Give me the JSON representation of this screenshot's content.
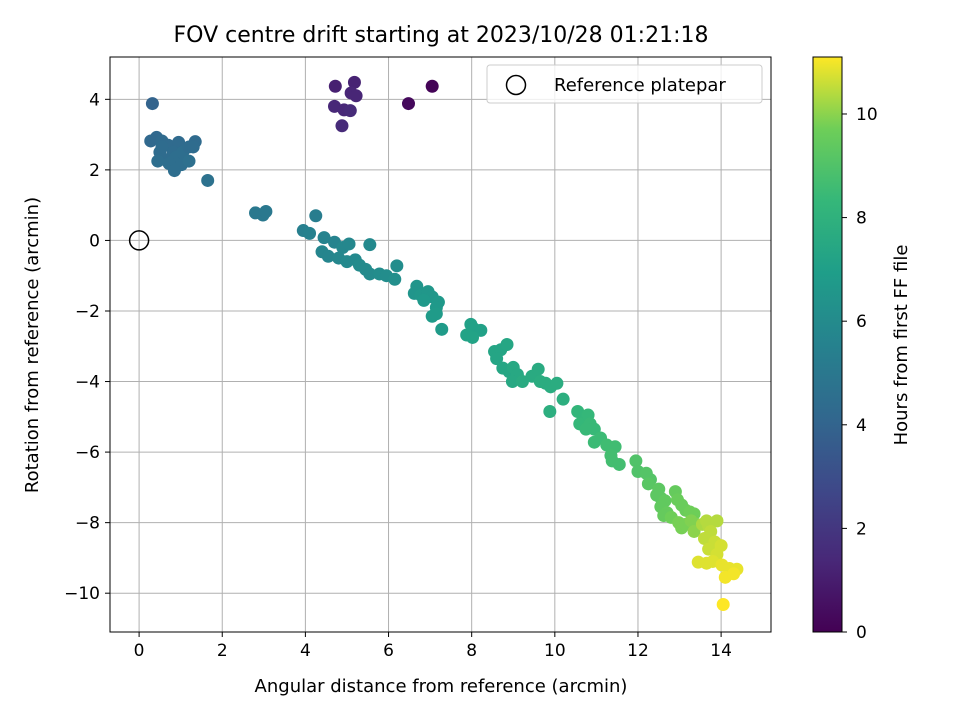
{
  "chart_data": {
    "type": "scatter",
    "title": "FOV centre drift starting at 2023/10/28 01:21:18",
    "xlabel": "Angular distance from reference (arcmin)",
    "ylabel": "Rotation from reference (arcmin)",
    "xlim": [
      -0.7,
      15.2
    ],
    "ylim": [
      -11.1,
      5.2
    ],
    "xticks": [
      0,
      2,
      4,
      6,
      8,
      10,
      12,
      14
    ],
    "yticks": [
      -10,
      -8,
      -6,
      -4,
      -2,
      0,
      2,
      4
    ],
    "grid": true,
    "colormap": "viridis",
    "colorbar": {
      "label": "Hours from first FF file",
      "range": [
        0,
        11.1
      ],
      "ticks": [
        0,
        2,
        4,
        6,
        8,
        10
      ]
    },
    "legend": {
      "position": "top-right",
      "entries": [
        "Reference platepar"
      ]
    },
    "reference_point": {
      "x": 0,
      "y": 0,
      "label": "Reference platepar"
    },
    "points": [
      [
        7.05,
        4.37,
        0.1
      ],
      [
        6.48,
        3.88,
        0.3
      ],
      [
        4.72,
        4.37,
        1.1
      ],
      [
        5.18,
        4.48,
        1.2
      ],
      [
        5.1,
        4.18,
        1.3
      ],
      [
        5.22,
        4.1,
        1.3
      ],
      [
        4.7,
        3.8,
        1.4
      ],
      [
        4.93,
        3.7,
        1.4
      ],
      [
        5.08,
        3.68,
        1.5
      ],
      [
        4.88,
        3.25,
        1.5
      ],
      [
        0.32,
        3.88,
        4.0
      ],
      [
        0.28,
        2.82,
        4.2
      ],
      [
        0.42,
        2.92,
        4.2
      ],
      [
        0.55,
        2.82,
        4.3
      ],
      [
        0.7,
        2.7,
        4.3
      ],
      [
        0.95,
        2.78,
        4.3
      ],
      [
        0.82,
        2.5,
        4.4
      ],
      [
        0.5,
        2.5,
        4.4
      ],
      [
        0.6,
        2.3,
        4.4
      ],
      [
        0.88,
        2.35,
        4.5
      ],
      [
        1.05,
        2.5,
        4.5
      ],
      [
        1.2,
        2.65,
        4.4
      ],
      [
        1.35,
        2.8,
        4.3
      ],
      [
        1.3,
        2.65,
        4.4
      ],
      [
        0.45,
        2.25,
        4.5
      ],
      [
        0.72,
        2.18,
        4.5
      ],
      [
        1.02,
        2.15,
        4.5
      ],
      [
        0.85,
        1.98,
        4.5
      ],
      [
        1.2,
        2.25,
        4.6
      ],
      [
        0.55,
        2.65,
        4.4
      ],
      [
        1.65,
        1.7,
        4.7
      ],
      [
        2.8,
        0.78,
        5.0
      ],
      [
        2.98,
        0.72,
        5.0
      ],
      [
        3.05,
        0.82,
        5.0
      ],
      [
        4.25,
        0.7,
        5.3
      ],
      [
        3.95,
        0.28,
        5.4
      ],
      [
        4.1,
        0.2,
        5.5
      ],
      [
        4.45,
        0.08,
        5.6
      ],
      [
        4.7,
        -0.05,
        5.6
      ],
      [
        4.4,
        -0.32,
        5.7
      ],
      [
        4.55,
        -0.45,
        5.7
      ],
      [
        4.8,
        -0.5,
        5.8
      ],
      [
        4.9,
        -0.2,
        5.8
      ],
      [
        5.05,
        -0.1,
        5.8
      ],
      [
        5.55,
        -0.12,
        5.9
      ],
      [
        5.0,
        -0.6,
        5.9
      ],
      [
        5.2,
        -0.55,
        5.9
      ],
      [
        5.3,
        -0.7,
        6.0
      ],
      [
        5.45,
        -0.82,
        6.0
      ],
      [
        5.55,
        -0.95,
        6.0
      ],
      [
        5.78,
        -0.95,
        6.1
      ],
      [
        5.95,
        -1.0,
        6.1
      ],
      [
        6.2,
        -0.72,
        6.1
      ],
      [
        6.15,
        -1.1,
        6.2
      ],
      [
        6.68,
        -1.3,
        6.5
      ],
      [
        6.62,
        -1.5,
        6.5
      ],
      [
        6.78,
        -1.55,
        6.6
      ],
      [
        6.95,
        -1.45,
        6.6
      ],
      [
        7.05,
        -1.6,
        6.6
      ],
      [
        6.85,
        -1.7,
        6.7
      ],
      [
        7.2,
        -1.75,
        6.7
      ],
      [
        7.15,
        -1.9,
        6.7
      ],
      [
        7.05,
        -2.15,
        6.8
      ],
      [
        7.15,
        -2.08,
        6.8
      ],
      [
        7.28,
        -2.52,
        6.8
      ],
      [
        7.98,
        -2.38,
        7.1
      ],
      [
        8.05,
        -2.5,
        7.1
      ],
      [
        8.22,
        -2.55,
        7.1
      ],
      [
        7.88,
        -2.68,
        7.2
      ],
      [
        8.02,
        -2.75,
        7.2
      ],
      [
        8.55,
        -3.15,
        7.3
      ],
      [
        8.7,
        -3.1,
        7.3
      ],
      [
        8.6,
        -3.35,
        7.3
      ],
      [
        8.85,
        -2.95,
        7.4
      ],
      [
        8.75,
        -3.62,
        7.4
      ],
      [
        8.9,
        -3.72,
        7.4
      ],
      [
        9.0,
        -3.6,
        7.5
      ],
      [
        9.1,
        -3.8,
        7.5
      ],
      [
        8.98,
        -4.0,
        7.5
      ],
      [
        9.22,
        -4.0,
        7.6
      ],
      [
        9.45,
        -3.85,
        7.6
      ],
      [
        9.6,
        -3.65,
        7.6
      ],
      [
        9.65,
        -4.0,
        7.7
      ],
      [
        9.78,
        -4.05,
        7.7
      ],
      [
        9.9,
        -4.15,
        7.7
      ],
      [
        10.05,
        -4.05,
        7.7
      ],
      [
        9.88,
        -4.85,
        7.8
      ],
      [
        10.2,
        -4.5,
        7.8
      ],
      [
        10.55,
        -4.85,
        8.2
      ],
      [
        10.7,
        -5.0,
        8.2
      ],
      [
        10.6,
        -5.2,
        8.3
      ],
      [
        10.8,
        -4.95,
        8.3
      ],
      [
        10.85,
        -5.2,
        8.4
      ],
      [
        10.95,
        -5.35,
        8.4
      ],
      [
        10.75,
        -5.35,
        8.4
      ],
      [
        10.95,
        -5.72,
        8.5
      ],
      [
        11.1,
        -5.6,
        8.5
      ],
      [
        11.25,
        -5.8,
        8.6
      ],
      [
        11.45,
        -5.85,
        8.6
      ],
      [
        11.35,
        -6.1,
        8.7
      ],
      [
        11.55,
        -6.35,
        8.7
      ],
      [
        11.38,
        -6.25,
        8.7
      ],
      [
        11.95,
        -6.25,
        9.0
      ],
      [
        12.0,
        -6.55,
        9.0
      ],
      [
        12.2,
        -6.6,
        9.1
      ],
      [
        12.3,
        -6.78,
        9.1
      ],
      [
        12.25,
        -6.9,
        9.2
      ],
      [
        12.5,
        -7.05,
        9.3
      ],
      [
        12.55,
        -7.3,
        9.3
      ],
      [
        12.45,
        -7.22,
        9.3
      ],
      [
        12.65,
        -7.38,
        9.4
      ],
      [
        12.55,
        -7.55,
        9.4
      ],
      [
        12.7,
        -7.72,
        9.5
      ],
      [
        12.62,
        -7.8,
        9.5
      ],
      [
        12.9,
        -7.12,
        9.5
      ],
      [
        12.95,
        -7.35,
        9.6
      ],
      [
        13.05,
        -7.5,
        9.6
      ],
      [
        13.15,
        -7.65,
        9.6
      ],
      [
        13.25,
        -7.7,
        9.7
      ],
      [
        13.35,
        -7.75,
        9.7
      ],
      [
        12.8,
        -7.85,
        9.7
      ],
      [
        12.98,
        -8.0,
        9.8
      ],
      [
        13.05,
        -8.15,
        9.8
      ],
      [
        13.15,
        -8.05,
        9.8
      ],
      [
        13.28,
        -7.95,
        9.9
      ],
      [
        13.4,
        -8.05,
        9.9
      ],
      [
        13.35,
        -8.25,
        10.0
      ],
      [
        13.55,
        -8.05,
        10.3
      ],
      [
        13.7,
        -8.1,
        10.4
      ],
      [
        13.65,
        -7.95,
        10.4
      ],
      [
        13.9,
        -7.95,
        10.4
      ],
      [
        13.75,
        -8.25,
        10.5
      ],
      [
        13.6,
        -8.45,
        10.5
      ],
      [
        13.85,
        -8.55,
        10.6
      ],
      [
        13.7,
        -8.75,
        10.6
      ],
      [
        14.0,
        -8.65,
        10.7
      ],
      [
        13.9,
        -8.9,
        10.7
      ],
      [
        13.8,
        -9.1,
        10.8
      ],
      [
        13.65,
        -9.15,
        10.8
      ],
      [
        13.45,
        -9.12,
        10.8
      ],
      [
        14.02,
        -9.2,
        10.9
      ],
      [
        14.2,
        -9.3,
        10.9
      ],
      [
        14.38,
        -9.32,
        10.9
      ],
      [
        14.1,
        -9.55,
        11.0
      ],
      [
        14.3,
        -9.45,
        11.0
      ],
      [
        14.05,
        -10.32,
        11.1
      ]
    ]
  }
}
